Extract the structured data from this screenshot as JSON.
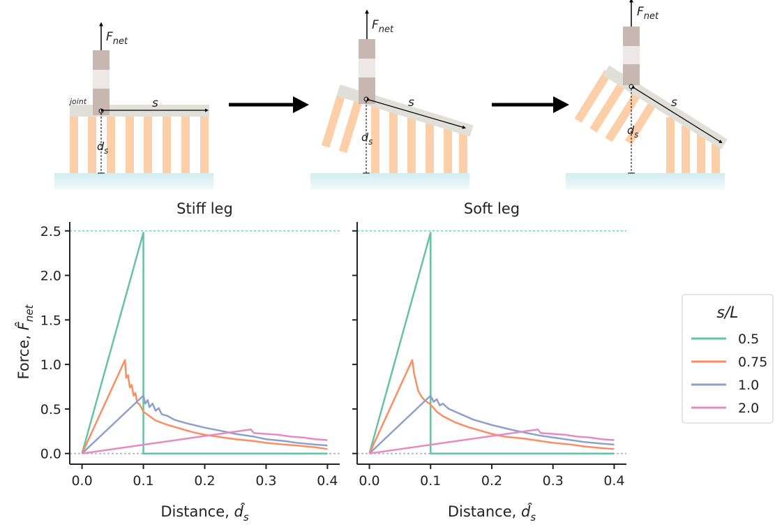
{
  "diagram": {
    "force_symbol": "F",
    "force_sub": "net",
    "joint_label": "joint",
    "span_label": "s",
    "depth_symbol": "d",
    "depth_sub": "s"
  },
  "chart_data": [
    {
      "type": "line",
      "title": "Stiff leg",
      "xlabel": {
        "text": "Distance, ",
        "symbol": "d̂",
        "sub": "s"
      },
      "ylabel": {
        "text": "Force, ",
        "symbol": "F̂",
        "sub": "net"
      },
      "xlim": [
        -0.02,
        0.42
      ],
      "ylim": [
        -0.12,
        2.6
      ],
      "xticks": [
        {
          "value": 0,
          "label": "0.0"
        },
        {
          "value": 0.1,
          "label": "0.1"
        },
        {
          "value": 0.2,
          "label": "0.2"
        },
        {
          "value": 0.3,
          "label": "0.3"
        },
        {
          "value": 0.4,
          "label": "0.4"
        }
      ],
      "yticks": [
        {
          "value": 0,
          "label": "0.0"
        },
        {
          "value": 0.5,
          "label": "0.5"
        },
        {
          "value": 1,
          "label": "1.0"
        },
        {
          "value": 1.5,
          "label": "1.5"
        },
        {
          "value": 2,
          "label": "2.0"
        },
        {
          "value": 2.5,
          "label": "2.5"
        }
      ],
      "reference_line": 2.5,
      "zero_line": 0,
      "series": [
        {
          "name": "0.5",
          "color": "#66c2a5",
          "x": [
            0,
            0.1,
            0.1,
            0.4
          ],
          "values": [
            0,
            2.48,
            0,
            0
          ]
        },
        {
          "name": "0.75",
          "color": "#fc8d62",
          "x": [
            0,
            0.07,
            0.072,
            0.075,
            0.078,
            0.081,
            0.084,
            0.087,
            0.09,
            0.094,
            0.1,
            0.11,
            0.12,
            0.14,
            0.16,
            0.18,
            0.2,
            0.22,
            0.25,
            0.28,
            0.3,
            0.33,
            0.35,
            0.38,
            0.4
          ],
          "values": [
            0,
            1.05,
            0.85,
            0.88,
            0.74,
            0.77,
            0.65,
            0.68,
            0.57,
            0.55,
            0.47,
            0.42,
            0.37,
            0.32,
            0.28,
            0.24,
            0.21,
            0.19,
            0.16,
            0.14,
            0.12,
            0.1,
            0.09,
            0.07,
            0.05
          ]
        },
        {
          "name": "1.0",
          "color": "#8da0cb",
          "x": [
            0,
            0.1,
            0.103,
            0.107,
            0.11,
            0.115,
            0.12,
            0.125,
            0.13,
            0.14,
            0.15,
            0.17,
            0.2,
            0.23,
            0.25,
            0.28,
            0.3,
            0.33,
            0.35,
            0.38,
            0.4
          ],
          "values": [
            0,
            0.65,
            0.56,
            0.6,
            0.52,
            0.56,
            0.48,
            0.51,
            0.44,
            0.42,
            0.38,
            0.34,
            0.29,
            0.25,
            0.22,
            0.19,
            0.16,
            0.14,
            0.12,
            0.1,
            0.09
          ]
        },
        {
          "name": "2.0",
          "color": "#e78ac3",
          "x": [
            0,
            0.275,
            0.28,
            0.3,
            0.32,
            0.34,
            0.36,
            0.38,
            0.4
          ],
          "values": [
            0,
            0.27,
            0.23,
            0.22,
            0.21,
            0.19,
            0.18,
            0.16,
            0.15
          ]
        }
      ]
    },
    {
      "type": "line",
      "title": "Soft leg",
      "xlabel": {
        "text": "Distance, ",
        "symbol": "d̂",
        "sub": "s"
      },
      "xlim": [
        -0.02,
        0.42
      ],
      "ylim": [
        -0.12,
        2.6
      ],
      "xticks": [
        {
          "value": 0,
          "label": "0.0"
        },
        {
          "value": 0.1,
          "label": "0.1"
        },
        {
          "value": 0.2,
          "label": "0.2"
        },
        {
          "value": 0.3,
          "label": "0.3"
        },
        {
          "value": 0.4,
          "label": "0.4"
        }
      ],
      "reference_line": 2.5,
      "zero_line": 0,
      "legend_title": "s/L",
      "series": [
        {
          "name": "0.5",
          "color": "#66c2a5",
          "x": [
            0,
            0.1,
            0.1,
            0.4
          ],
          "values": [
            0,
            2.48,
            0,
            0
          ]
        },
        {
          "name": "0.75",
          "color": "#fc8d62",
          "x": [
            0,
            0.07,
            0.073,
            0.077,
            0.08,
            0.085,
            0.09,
            0.1,
            0.11,
            0.12,
            0.14,
            0.16,
            0.18,
            0.2,
            0.22,
            0.25,
            0.28,
            0.3,
            0.33,
            0.35,
            0.38,
            0.4
          ],
          "values": [
            0,
            1.05,
            0.9,
            0.78,
            0.7,
            0.64,
            0.6,
            0.55,
            0.47,
            0.42,
            0.35,
            0.3,
            0.26,
            0.22,
            0.19,
            0.17,
            0.14,
            0.12,
            0.1,
            0.08,
            0.06,
            0.05
          ]
        },
        {
          "name": "1.0",
          "color": "#8da0cb",
          "x": [
            0,
            0.1,
            0.105,
            0.11,
            0.115,
            0.12,
            0.13,
            0.15,
            0.17,
            0.2,
            0.23,
            0.25,
            0.28,
            0.3,
            0.33,
            0.35,
            0.38,
            0.4
          ],
          "values": [
            0,
            0.65,
            0.58,
            0.61,
            0.54,
            0.56,
            0.5,
            0.44,
            0.38,
            0.32,
            0.27,
            0.24,
            0.2,
            0.18,
            0.15,
            0.13,
            0.11,
            0.1
          ]
        },
        {
          "name": "2.0",
          "color": "#e78ac3",
          "x": [
            0,
            0.275,
            0.28,
            0.3,
            0.32,
            0.34,
            0.36,
            0.38,
            0.4
          ],
          "values": [
            0,
            0.27,
            0.23,
            0.22,
            0.21,
            0.19,
            0.18,
            0.16,
            0.15
          ]
        }
      ]
    }
  ]
}
